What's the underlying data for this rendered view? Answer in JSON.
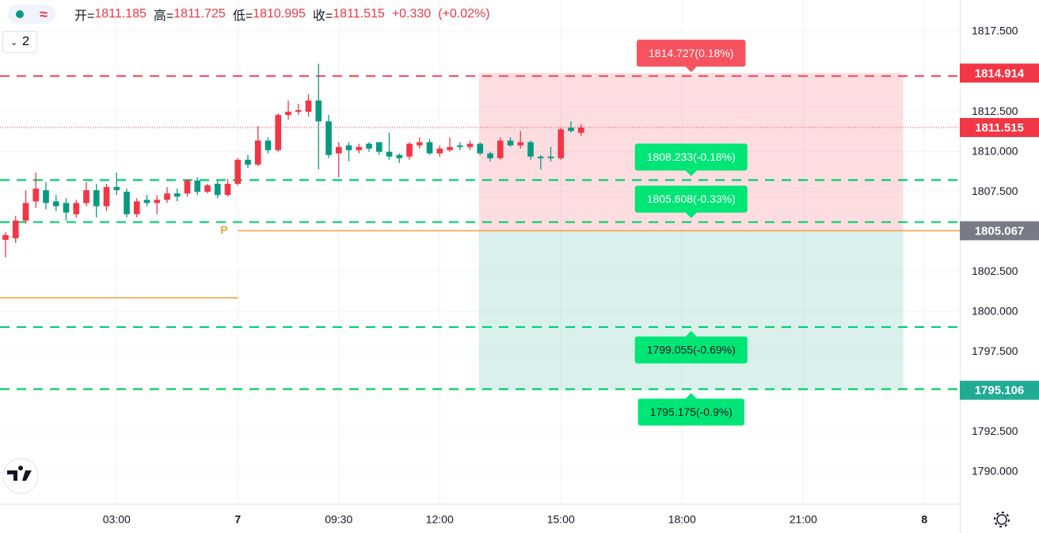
{
  "toolbar": {
    "badge": "≈",
    "count": "2"
  },
  "legend": {
    "labels": [
      "开=",
      "高=",
      "低=",
      "收="
    ],
    "change": "+0.330",
    "change_pct": "(+0.02%)"
  },
  "chart_data": {
    "type": "candlestick",
    "up_color": "#f23645",
    "down_color": "#089981",
    "open": [
      1804.5,
      1804.6,
      1805.7,
      1806.9,
      1807.6,
      1806.9,
      1806.8,
      1806.1,
      1806.8,
      1807.6,
      1806.6,
      1807.8,
      1807.5,
      1806.1,
      1807.0,
      1806.8,
      1807.0,
      1807.4,
      1807.4,
      1808.2,
      1807.5,
      1808.0,
      1807.3,
      1808.0,
      1809.5,
      1809.2,
      1810.7,
      1810.1,
      1812.3,
      1812.5,
      1812.5,
      1813.2,
      1811.9,
      1809.9,
      1810.4,
      1810.1,
      1810.5,
      1810.6,
      1810.0,
      1809.8,
      1809.7,
      1810.4,
      1810.6,
      1809.9,
      1810.1,
      1810.4,
      1810.3,
      1810.5,
      1809.9,
      1809.6,
      1810.7,
      1810.4,
      1810.6,
      1809.7,
      1809.7,
      1809.6,
      1811.5,
      1811.185
    ],
    "high": [
      1805.0,
      1806.0,
      1807.6,
      1808.7,
      1808.1,
      1807.3,
      1807.1,
      1807.0,
      1808.1,
      1808.0,
      1808.0,
      1808.7,
      1807.7,
      1807.1,
      1807.3,
      1807.3,
      1807.8,
      1807.7,
      1808.3,
      1808.4,
      1808.0,
      1808.2,
      1808.3,
      1809.6,
      1809.8,
      1811.6,
      1810.9,
      1812.4,
      1813.2,
      1813.0,
      1813.6,
      1815.5,
      1812.3,
      1810.6,
      1810.6,
      1810.5,
      1810.6,
      1810.6,
      1811.2,
      1809.9,
      1810.6,
      1810.9,
      1810.8,
      1810.4,
      1810.9,
      1810.6,
      1810.7,
      1810.6,
      1810.0,
      1810.9,
      1810.9,
      1811.3,
      1810.7,
      1809.8,
      1810.3,
      1811.5,
      1811.9,
      1811.725
    ],
    "low": [
      1803.4,
      1804.3,
      1805.5,
      1806.5,
      1806.4,
      1806.3,
      1805.7,
      1805.9,
      1806.6,
      1805.9,
      1806.3,
      1807.3,
      1805.9,
      1805.9,
      1806.6,
      1806.1,
      1806.8,
      1806.9,
      1807.2,
      1807.3,
      1807.4,
      1807.1,
      1807.2,
      1807.9,
      1809.0,
      1809.1,
      1809.9,
      1810.0,
      1812.0,
      1812.3,
      1812.2,
      1808.9,
      1809.6,
      1808.4,
      1809.4,
      1809.9,
      1810.0,
      1809.8,
      1809.5,
      1809.3,
      1809.5,
      1810.2,
      1809.8,
      1809.7,
      1810.0,
      1810.1,
      1810.1,
      1809.8,
      1809.4,
      1809.5,
      1810.3,
      1810.2,
      1809.5,
      1808.9,
      1809.4,
      1809.5,
      1811.2,
      1810.995
    ],
    "close": [
      1804.8,
      1805.7,
      1806.8,
      1807.7,
      1806.8,
      1806.6,
      1806.2,
      1806.8,
      1807.6,
      1806.6,
      1807.8,
      1807.6,
      1806.1,
      1806.9,
      1806.8,
      1807.0,
      1807.4,
      1807.2,
      1808.2,
      1807.5,
      1807.9,
      1807.3,
      1808.0,
      1809.5,
      1809.2,
      1810.7,
      1810.1,
      1812.3,
      1812.5,
      1812.6,
      1813.2,
      1811.9,
      1809.8,
      1810.3,
      1810.1,
      1810.3,
      1810.2,
      1810.0,
      1809.7,
      1809.6,
      1810.5,
      1810.6,
      1809.9,
      1810.2,
      1810.3,
      1810.3,
      1810.5,
      1809.9,
      1809.6,
      1810.7,
      1810.4,
      1810.6,
      1809.7,
      1809.6,
      1809.6,
      1811.4,
      1811.3,
      1811.515
    ],
    "xlim": [
      -0.55,
      94.51
    ],
    "xticks": [
      {
        "value": 11,
        "label": "03:00"
      },
      {
        "value": 23,
        "label": "7",
        "bold": true
      },
      {
        "value": 33,
        "label": "09:30"
      },
      {
        "value": 43,
        "label": "12:00"
      },
      {
        "value": 55,
        "label": "15:00"
      },
      {
        "value": 67,
        "label": "18:00"
      },
      {
        "value": 79,
        "label": "21:00"
      },
      {
        "value": 91,
        "label": "8",
        "bold": true
      }
    ],
    "ylim": [
      1788.02,
      1819.48
    ],
    "yticks": [
      {
        "value": 1817.5,
        "label": "1817.500"
      },
      {
        "value": 1812.5,
        "label": "1812.500"
      },
      {
        "value": 1810,
        "label": "1810.000"
      },
      {
        "value": 1807.5,
        "label": "1807.500"
      },
      {
        "value": 1802.5,
        "label": "1802.500"
      },
      {
        "value": 1800,
        "label": "1800.000"
      },
      {
        "value": 1797.5,
        "label": "1797.500"
      },
      {
        "value": 1792.5,
        "label": "1792.500"
      },
      {
        "value": 1790,
        "label": "1790.000"
      }
    ],
    "grid": true,
    "prior_level": 1800.88,
    "position": {
      "entry": {
        "value": 1805.067,
        "label": "1805.067"
      },
      "target": {
        "value": 1814.914,
        "label": "1814.914"
      },
      "stop": {
        "value": 1795.106,
        "label": "1795.106"
      },
      "x_start": 46.9,
      "x_end": 88.9,
      "marker": "P"
    },
    "levels": [
      {
        "value": 1814.727,
        "label": "1814.727(0.18%)",
        "color": "#f7525f"
      },
      {
        "value": 1808.233,
        "label": "1808.233(-0.18%)",
        "color": "#00e676"
      },
      {
        "value": 1805.608,
        "label": "1805.608(-0.33%)",
        "color": "#00e676"
      },
      {
        "value": 1799.055,
        "label": "1799.055(-0.69%)",
        "color": "#00e676"
      },
      {
        "value": 1795.175,
        "label": "1795.175(-0.9%)",
        "color": "#00e676"
      }
    ],
    "last_price": {
      "value": 1811.515,
      "label": "1811.515"
    }
  }
}
